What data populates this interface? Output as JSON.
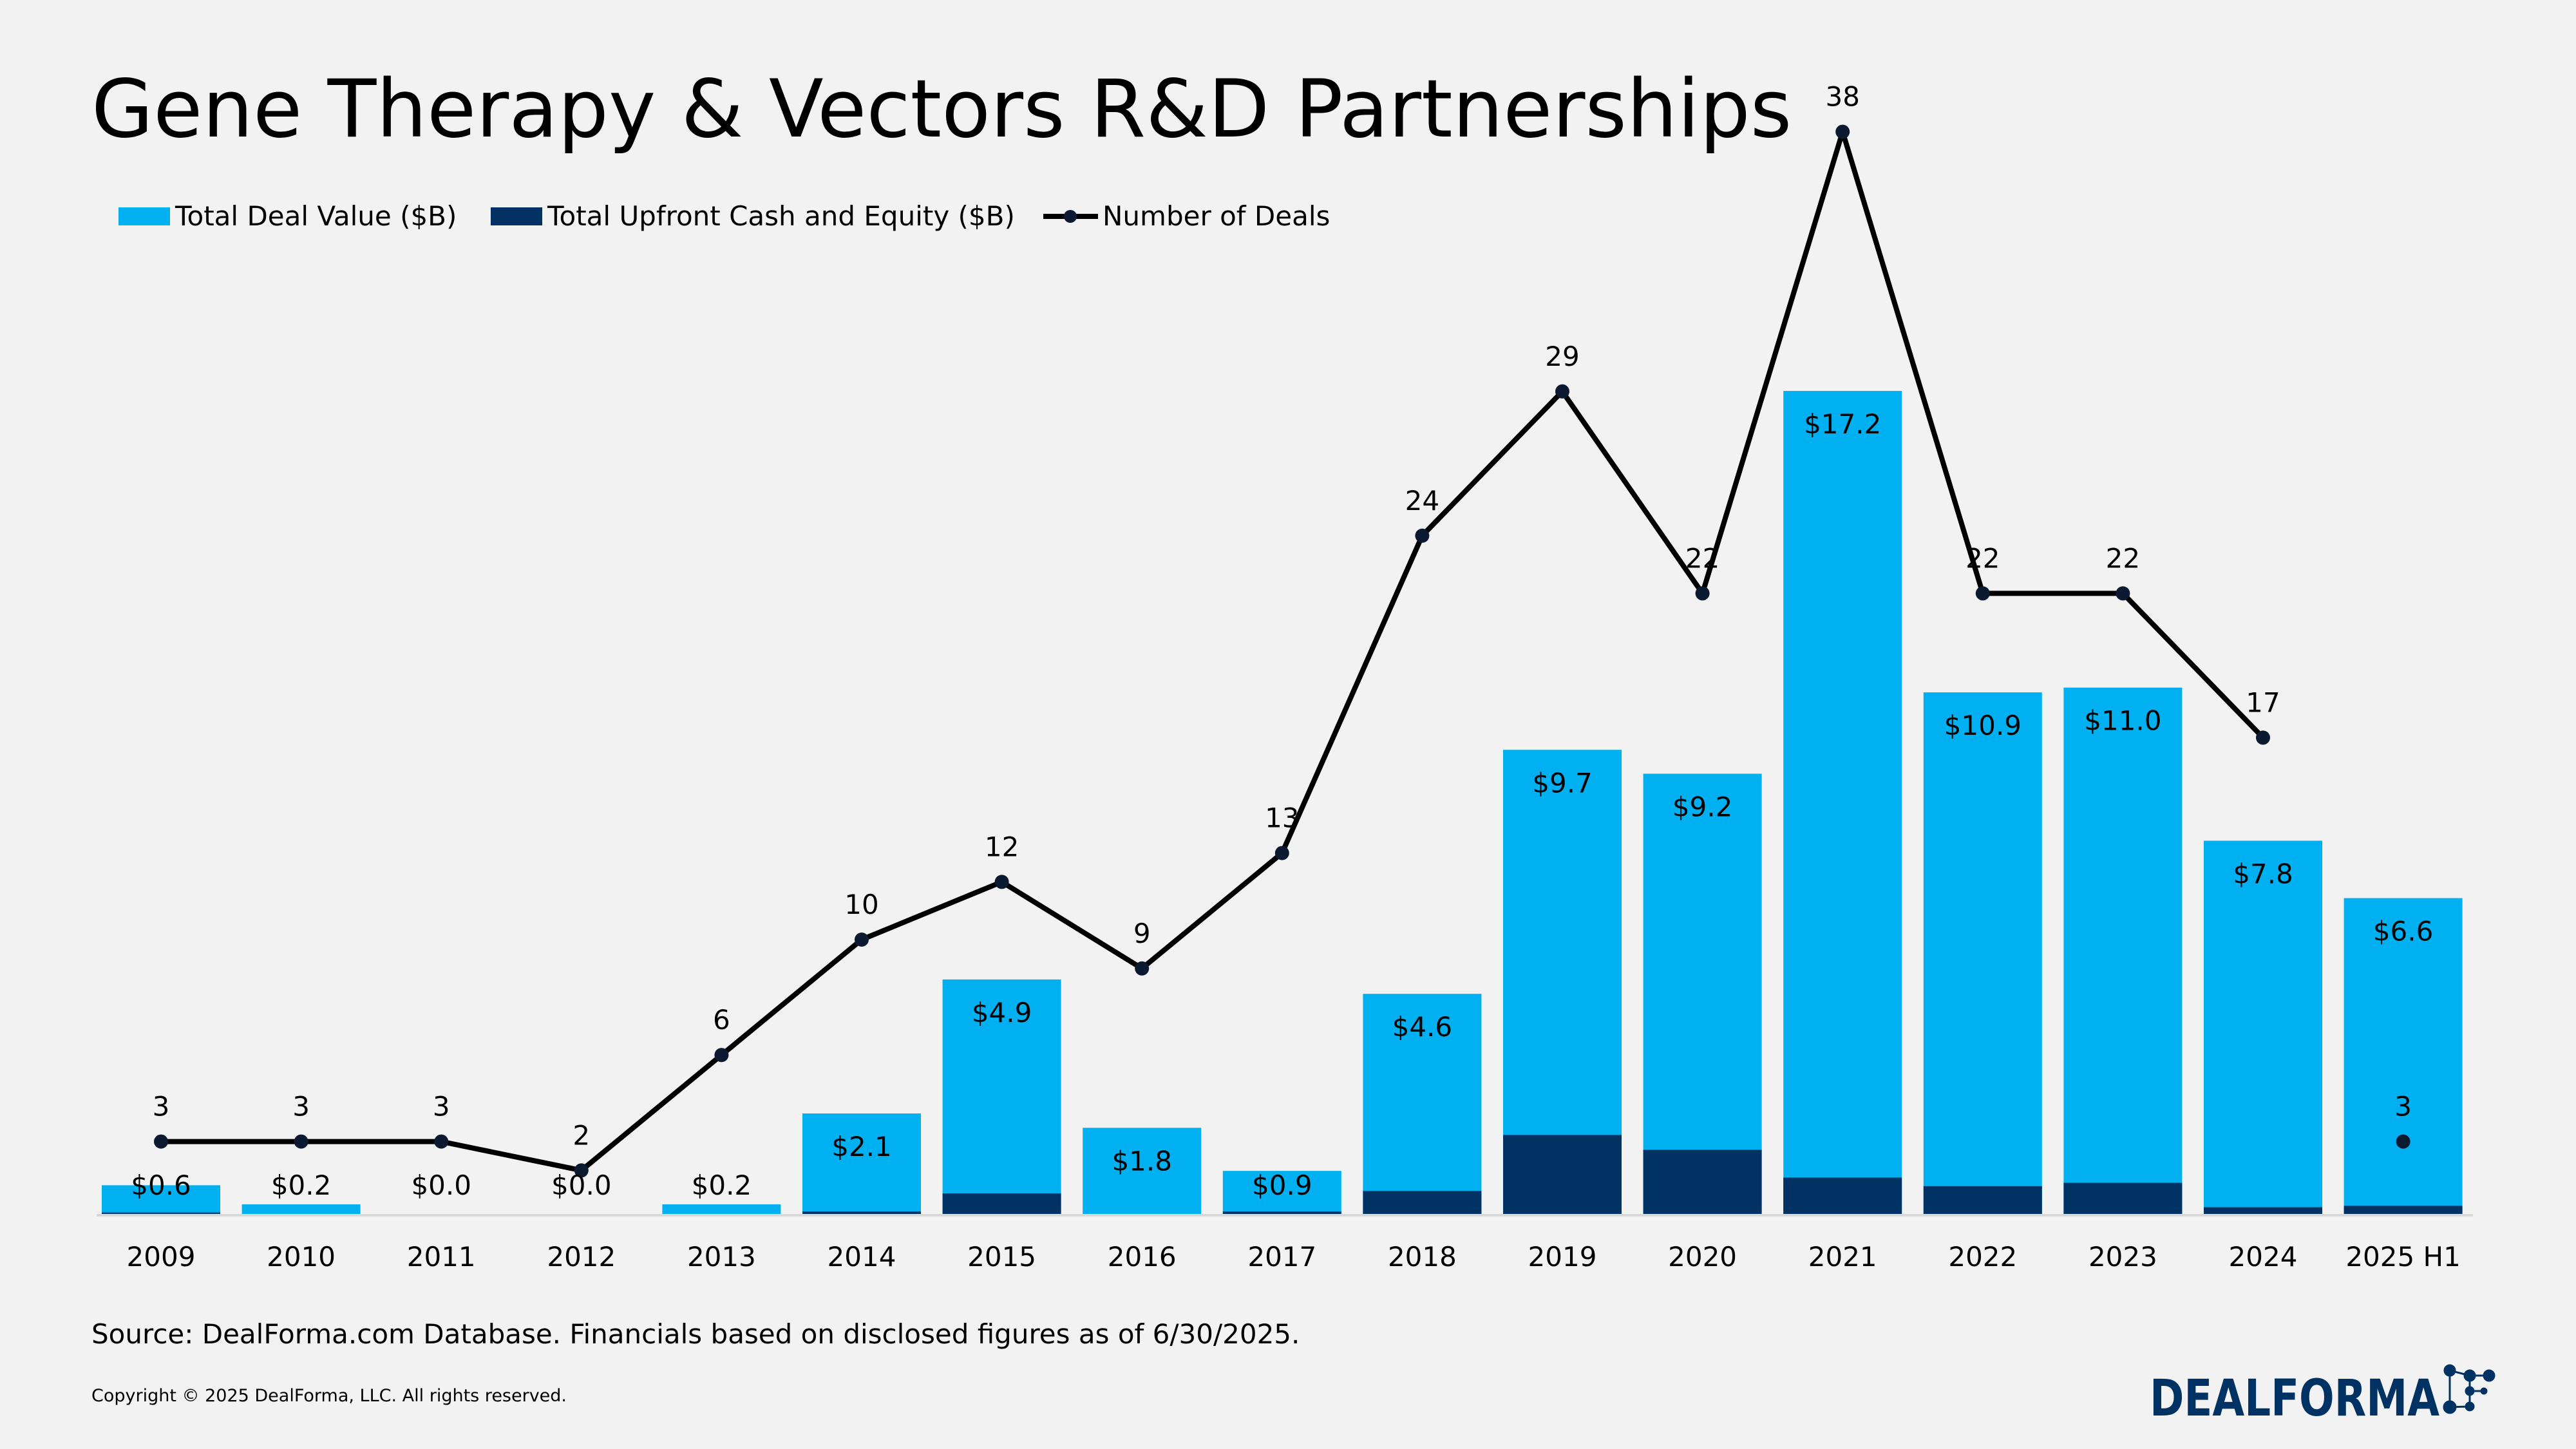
{
  "title": "Gene Therapy & Vectors R&D Partnerships",
  "source": "Source: DealForma.com Database. Financials based on disclosed figures as of 6/30/2025.",
  "copyright": "Copyright © 2025 DealForma, LLC. All rights reserved.",
  "logo": {
    "text": "DealForma"
  },
  "colors": {
    "total": "#00b0f0",
    "upfront": "#003264",
    "line": "#000000",
    "background": "#f2f2f2"
  },
  "chart_data": {
    "type": "bar",
    "title": "Gene Therapy & Vectors R&D Partnerships",
    "legend_position": "top-left",
    "grid": false,
    "categories": [
      "2009",
      "2010",
      "2011",
      "2012",
      "2013",
      "2014",
      "2015",
      "2016",
      "2017",
      "2018",
      "2019",
      "2020",
      "2021",
      "2022",
      "2023",
      "2024",
      "2025 H1"
    ],
    "series": [
      {
        "name": "Total Deal Value ($B)",
        "type": "bar",
        "values": [
          0.6,
          0.2,
          0.0,
          0.0,
          0.2,
          2.1,
          4.9,
          1.8,
          0.9,
          4.6,
          9.7,
          9.2,
          17.2,
          10.9,
          11.0,
          7.8,
          6.6
        ],
        "labels": [
          "$0.6",
          "$0.2",
          "$0.0",
          "$0.0",
          "$0.2",
          "$2.1",
          "$4.9",
          "$1.8",
          "$0.9",
          "$4.6",
          "$9.7",
          "$9.2",
          "$17.2",
          "$10.9",
          "$11.0",
          "$7.8",
          "$6.6"
        ]
      },
      {
        "name": "Total Upfront Cash and Equity ($B)",
        "type": "bar",
        "values": [
          0.03,
          0.0,
          0.0,
          0.0,
          0.0,
          0.05,
          0.43,
          0.0,
          0.05,
          0.48,
          1.65,
          1.34,
          0.76,
          0.58,
          0.65,
          0.14,
          0.17
        ]
      },
      {
        "name": "Number of Deals",
        "type": "line",
        "values": [
          3,
          3,
          3,
          2,
          6,
          10,
          12,
          9,
          13,
          24,
          29,
          22,
          38,
          22,
          22,
          17,
          3
        ]
      }
    ]
  }
}
